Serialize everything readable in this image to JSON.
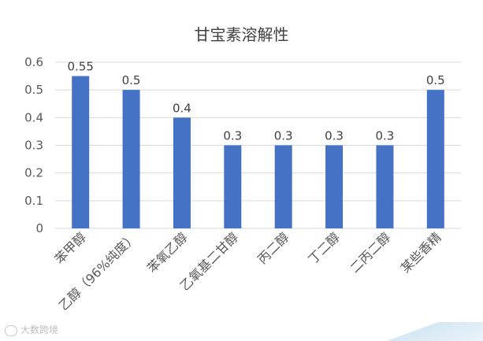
{
  "chart_data": {
    "type": "bar",
    "title": "甘宝素溶解性",
    "categories": [
      "苯甲醇",
      "乙醇（96%纯度）",
      "苯氧乙醇",
      "乙氧基二甘醇",
      "丙二醇",
      "丁二醇",
      "二丙二醇",
      "某些香精"
    ],
    "values": [
      0.55,
      0.5,
      0.4,
      0.3,
      0.3,
      0.3,
      0.3,
      0.5
    ],
    "data_labels": [
      "0.55",
      "0.5",
      "0.4",
      "0.3",
      "0.3",
      "0.3",
      "0.3",
      "0.5"
    ],
    "ylim": [
      0,
      0.6
    ],
    "yticks": [
      0,
      0.1,
      0.2,
      0.3,
      0.4,
      0.5,
      0.6
    ],
    "ytick_labels": [
      "0",
      "0.1",
      "0.2",
      "0.3",
      "0.4",
      "0.5",
      "0.6"
    ],
    "grid": true,
    "bar_color": "#4472C4",
    "grid_color": "#d9d9d9",
    "text_color": "#595959"
  },
  "watermark": {
    "text": "大数跨境"
  }
}
